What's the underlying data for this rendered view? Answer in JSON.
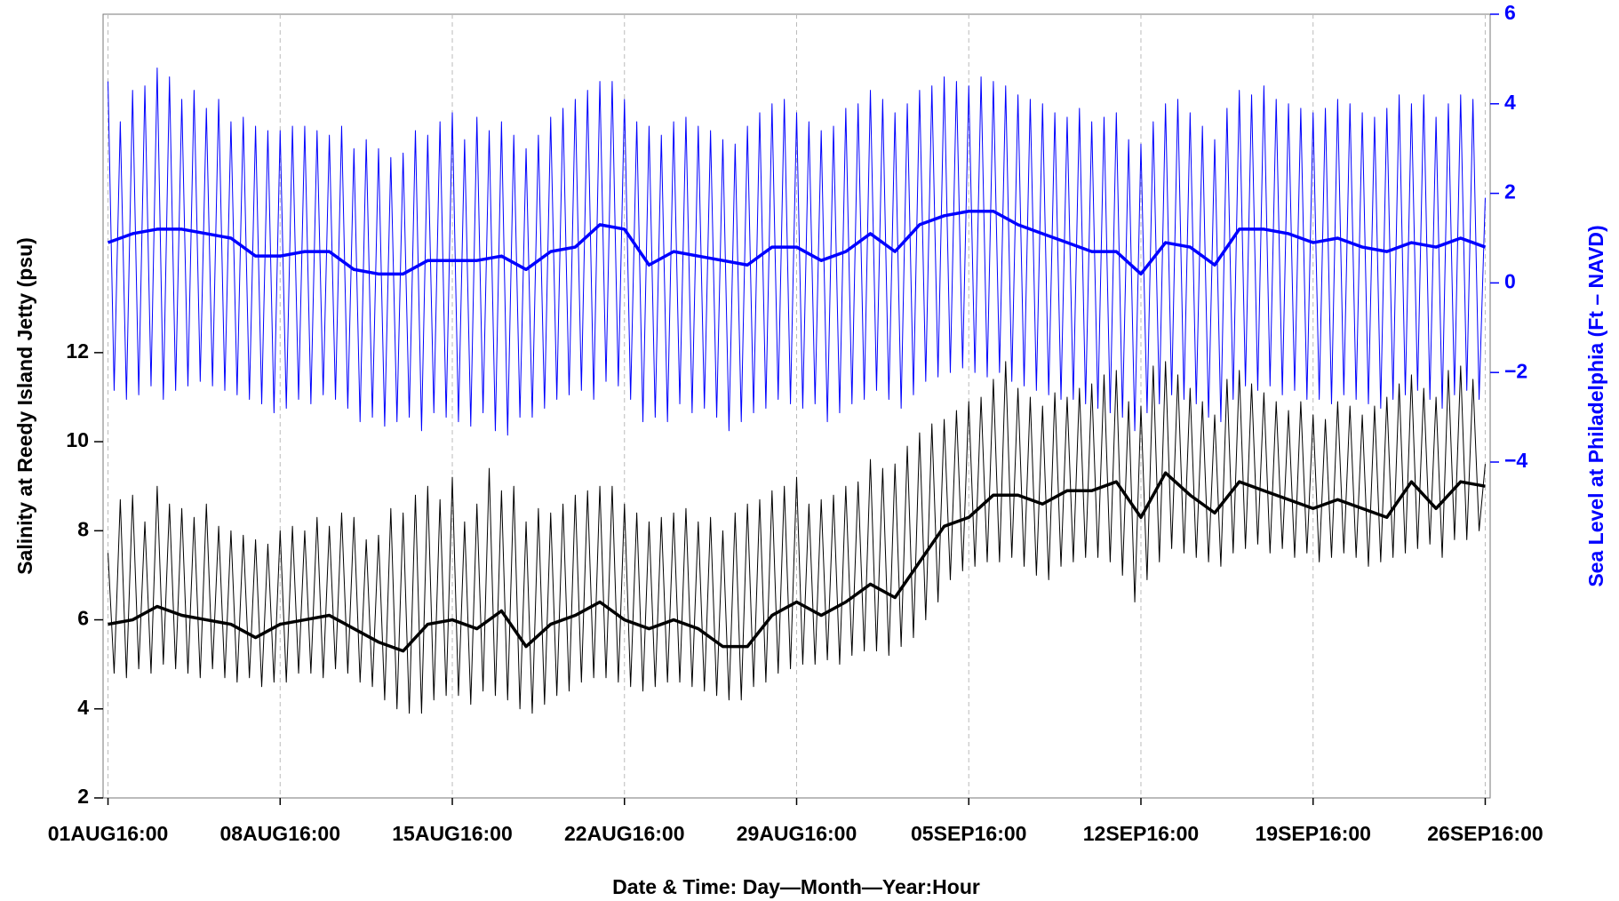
{
  "chart_data": {
    "type": "line",
    "xlabel": "Date & Time: Day—Month—Year:Hour",
    "ylabel": "Salinity at Reedy Island Jetty (psu)",
    "y2label": "Sea Level at Philadelphia (Ft  –  NAVD)",
    "xlim": [
      -0.2,
      56.2
    ],
    "xticks": [
      {
        "value": 0,
        "label": "01AUG16:00"
      },
      {
        "value": 7,
        "label": "08AUG16:00"
      },
      {
        "value": 14,
        "label": "15AUG16:00"
      },
      {
        "value": 21,
        "label": "22AUG16:00"
      },
      {
        "value": 28,
        "label": "29AUG16:00"
      },
      {
        "value": 35,
        "label": "05SEP16:00"
      },
      {
        "value": 42,
        "label": "12SEP16:00"
      },
      {
        "value": 49,
        "label": "19SEP16:00"
      },
      {
        "value": 56,
        "label": "26SEP16:00"
      }
    ],
    "ylim": [
      2,
      19.6
    ],
    "yticks": [
      2,
      4,
      6,
      8,
      10,
      12
    ],
    "y2lim": [
      -11.5,
      6
    ],
    "y2ticks": [
      {
        "value": -4,
        "label": "−4"
      },
      {
        "value": -2,
        "label": "−2"
      },
      0,
      2,
      4,
      6
    ],
    "xgrid": true,
    "x": [
      0,
      0.25,
      0.5,
      0.75,
      1,
      1.25,
      1.5,
      1.75,
      2,
      2.25,
      2.5,
      2.75,
      3,
      3.25,
      3.5,
      3.75,
      4,
      4.25,
      4.5,
      4.75,
      5,
      5.25,
      5.5,
      5.75,
      6,
      6.25,
      6.5,
      6.75,
      7,
      7.25,
      7.5,
      7.75,
      8,
      8.25,
      8.5,
      8.75,
      9,
      9.25,
      9.5,
      9.75,
      10,
      10.25,
      10.5,
      10.75,
      11,
      11.25,
      11.5,
      11.75,
      12,
      12.25,
      12.5,
      12.75,
      13,
      13.25,
      13.5,
      13.75,
      14,
      14.25,
      14.5,
      14.75,
      15,
      15.25,
      15.5,
      15.75,
      16,
      16.25,
      16.5,
      16.75,
      17,
      17.25,
      17.5,
      17.75,
      18,
      18.25,
      18.5,
      18.75,
      19,
      19.25,
      19.5,
      19.75,
      20,
      20.25,
      20.5,
      20.75,
      21,
      21.25,
      21.5,
      21.75,
      22,
      22.25,
      22.5,
      22.75,
      23,
      23.25,
      23.5,
      23.75,
      24,
      24.25,
      24.5,
      24.75,
      25,
      25.25,
      25.5,
      25.75,
      26,
      26.25,
      26.5,
      26.75,
      27,
      27.25,
      27.5,
      27.75,
      28,
      28.25,
      28.5,
      28.75,
      29,
      29.25,
      29.5,
      29.75,
      30,
      30.25,
      30.5,
      30.75,
      31,
      31.25,
      31.5,
      31.75,
      32,
      32.25,
      32.5,
      32.75,
      33,
      33.25,
      33.5,
      33.75,
      34,
      34.25,
      34.5,
      34.75,
      35,
      35.25,
      35.5,
      35.75,
      36,
      36.25,
      36.5,
      36.75,
      37,
      37.25,
      37.5,
      37.75,
      38,
      38.25,
      38.5,
      38.75,
      39,
      39.25,
      39.5,
      39.75,
      40,
      40.25,
      40.5,
      40.75,
      41,
      41.25,
      41.5,
      41.75,
      42,
      42.25,
      42.5,
      42.75,
      43,
      43.25,
      43.5,
      43.75,
      44,
      44.25,
      44.5,
      44.75,
      45,
      45.25,
      45.5,
      45.75,
      46,
      46.25,
      46.5,
      46.75,
      47,
      47.25,
      47.5,
      47.75,
      48,
      48.25,
      48.5,
      48.75,
      49,
      49.25,
      49.5,
      49.75,
      50,
      50.25,
      50.5,
      50.75,
      51,
      51.25,
      51.5,
      51.75,
      52,
      52.25,
      52.5,
      52.75,
      53,
      53.25,
      53.5,
      53.75,
      54,
      54.25,
      54.5,
      54.75,
      55,
      55.25,
      55.5,
      55.75,
      56
    ],
    "series": [
      {
        "axis": "y2",
        "color": "#0000ff",
        "width": 1,
        "values": [
          4.5,
          -2.4,
          3.6,
          -2.6,
          4.3,
          -2.5,
          4.4,
          -2.3,
          4.8,
          -2.6,
          4.6,
          -2.4,
          4.1,
          -2.3,
          4.3,
          -2.2,
          3.9,
          -2.3,
          4.1,
          -2.4,
          3.6,
          -2.5,
          3.7,
          -2.6,
          3.5,
          -2.7,
          3.4,
          -2.9,
          3.4,
          -2.8,
          3.5,
          -2.6,
          3.5,
          -2.7,
          3.4,
          -2.5,
          3.3,
          -2.6,
          3.5,
          -2.8,
          3.0,
          -3.1,
          3.2,
          -3.0,
          3.0,
          -3.2,
          2.8,
          -3.1,
          2.9,
          -3.0,
          3.4,
          -3.3,
          3.3,
          -2.9,
          3.6,
          -3.0,
          3.8,
          -3.1,
          3.2,
          -3.2,
          3.7,
          -2.9,
          3.4,
          -3.3,
          3.6,
          -3.4,
          3.3,
          -3.0,
          3.0,
          -3.0,
          3.3,
          -2.8,
          3.7,
          -2.6,
          3.9,
          -2.5,
          4.1,
          -2.4,
          4.3,
          -2.6,
          4.5,
          -2.2,
          4.5,
          -2.3,
          4.1,
          -2.6,
          3.6,
          -3.1,
          3.5,
          -3.0,
          3.3,
          -3.1,
          3.6,
          -2.7,
          3.7,
          -2.9,
          3.5,
          -2.8,
          3.4,
          -3.0,
          3.2,
          -3.3,
          3.1,
          -3.1,
          3.5,
          -2.9,
          3.8,
          -2.8,
          4.0,
          -2.6,
          4.1,
          -2.7,
          3.8,
          -2.8,
          3.6,
          -2.7,
          3.4,
          -3.1,
          3.5,
          -2.9,
          3.9,
          -2.7,
          4.0,
          -2.6,
          4.3,
          -2.4,
          4.1,
          -2.6,
          3.8,
          -2.8,
          4.0,
          -2.5,
          4.3,
          -2.2,
          4.4,
          -2.1,
          4.6,
          -2.0,
          4.5,
          -1.9,
          4.4,
          -2.0,
          4.6,
          -2.1,
          4.5,
          -2.0,
          4.4,
          -2.2,
          4.2,
          -2.3,
          4.1,
          -2.4,
          4.0,
          -2.5,
          3.8,
          -2.6,
          3.7,
          -2.6,
          3.9,
          -2.7,
          3.6,
          -2.8,
          3.7,
          -2.9,
          3.8,
          -3.0,
          3.2,
          -3.3,
          3.1,
          -2.9,
          3.6,
          -2.7,
          4.0,
          -2.5,
          4.1,
          -2.6,
          3.8,
          -2.7,
          3.5,
          -3.0,
          3.2,
          -3.1,
          3.9,
          -2.6,
          4.3,
          -2.3,
          4.2,
          -2.4,
          4.4,
          -2.3,
          4.1,
          -2.5,
          4.0,
          -2.4,
          3.9,
          -2.6,
          3.8,
          -2.6,
          3.9,
          -2.7,
          4.1,
          -2.5,
          4.0,
          -2.6,
          3.8,
          -2.7,
          3.7,
          -2.8,
          3.9,
          -2.6,
          4.2,
          -2.5,
          4.0,
          -2.4,
          4.2,
          -2.6,
          3.7,
          -2.8,
          4.0,
          -2.5,
          4.2,
          -2.4,
          4.1,
          -2.6,
          1.9
        ]
      },
      {
        "axis": "y2",
        "color": "#0000ff",
        "width": 3.5,
        "x": [
          0,
          1,
          2,
          3,
          4,
          5,
          6,
          7,
          8,
          9,
          10,
          11,
          12,
          13,
          14,
          15,
          16,
          17,
          18,
          19,
          20,
          21,
          22,
          23,
          24,
          25,
          26,
          27,
          28,
          29,
          30,
          31,
          32,
          33,
          34,
          35,
          36,
          37,
          38,
          39,
          40,
          41,
          42,
          43,
          44,
          45,
          46,
          47,
          48,
          49,
          50,
          51,
          52,
          53,
          54,
          55,
          56
        ],
        "values": [
          0.9,
          1.1,
          1.2,
          1.2,
          1.1,
          1.0,
          0.6,
          0.6,
          0.7,
          0.7,
          0.3,
          0.2,
          0.2,
          0.5,
          0.5,
          0.5,
          0.6,
          0.3,
          0.7,
          0.8,
          1.3,
          1.2,
          0.4,
          0.7,
          0.6,
          0.5,
          0.4,
          0.8,
          0.8,
          0.5,
          0.7,
          1.1,
          0.7,
          1.3,
          1.5,
          1.6,
          1.6,
          1.3,
          1.1,
          0.9,
          0.7,
          0.7,
          0.2,
          0.9,
          0.8,
          0.4,
          1.2,
          1.2,
          1.1,
          0.9,
          1.0,
          0.8,
          0.7,
          0.9,
          0.8,
          1.0,
          0.8
        ]
      },
      {
        "color": "#000000",
        "width": 1,
        "values": [
          7.5,
          4.8,
          8.7,
          4.7,
          8.8,
          4.9,
          8.2,
          4.8,
          9.0,
          5.0,
          8.6,
          4.9,
          8.5,
          4.8,
          8.3,
          4.7,
          8.6,
          4.9,
          8.1,
          4.7,
          8.0,
          4.6,
          7.9,
          4.7,
          7.8,
          4.5,
          7.7,
          4.6,
          8.0,
          4.6,
          8.1,
          4.8,
          8.0,
          4.8,
          8.3,
          4.7,
          8.1,
          4.9,
          8.4,
          4.8,
          8.3,
          4.6,
          7.8,
          4.5,
          7.9,
          4.2,
          8.5,
          4.0,
          8.4,
          3.9,
          8.8,
          3.9,
          9.0,
          4.2,
          8.7,
          4.3,
          9.2,
          4.3,
          8.2,
          4.1,
          8.6,
          4.4,
          9.4,
          4.3,
          8.9,
          4.2,
          9.0,
          4.0,
          8.2,
          3.9,
          8.5,
          4.1,
          8.4,
          4.3,
          8.6,
          4.4,
          8.8,
          4.6,
          8.9,
          4.7,
          9.0,
          4.7,
          9.0,
          4.6,
          8.6,
          4.5,
          8.4,
          4.4,
          8.2,
          4.5,
          8.3,
          4.6,
          8.4,
          4.6,
          8.5,
          4.5,
          8.2,
          4.4,
          8.3,
          4.3,
          8.0,
          4.2,
          8.4,
          4.2,
          8.6,
          4.5,
          8.7,
          4.6,
          8.9,
          4.8,
          9.0,
          4.9,
          9.2,
          5.0,
          8.6,
          5.0,
          8.7,
          5.1,
          8.8,
          5.0,
          9.0,
          5.2,
          9.1,
          5.3,
          9.6,
          5.3,
          9.4,
          5.2,
          9.5,
          5.4,
          9.9,
          5.6,
          10.2,
          6.0,
          10.4,
          6.4,
          10.5,
          6.9,
          10.7,
          7.1,
          10.9,
          7.2,
          11.0,
          7.3,
          11.4,
          7.3,
          11.8,
          7.4,
          11.2,
          7.2,
          11.0,
          7.0,
          10.8,
          6.9,
          11.1,
          7.2,
          11.0,
          7.3,
          11.2,
          7.4,
          11.3,
          7.4,
          11.5,
          7.3,
          11.6,
          7.0,
          10.9,
          6.4,
          10.8,
          6.9,
          11.7,
          7.3,
          11.8,
          7.6,
          11.5,
          7.5,
          11.2,
          7.4,
          10.9,
          7.3,
          10.6,
          7.2,
          11.4,
          7.5,
          11.6,
          7.6,
          11.3,
          7.7,
          11.1,
          7.5,
          10.9,
          7.6,
          10.7,
          7.4,
          10.9,
          7.5,
          10.6,
          7.3,
          10.5,
          7.4,
          10.9,
          7.5,
          10.8,
          7.4,
          10.6,
          7.2,
          10.8,
          7.3,
          11.0,
          7.4,
          11.3,
          7.5,
          11.5,
          7.6,
          11.2,
          7.7,
          11.0,
          7.4,
          11.6,
          7.8,
          11.7,
          7.8,
          11.4,
          8.0,
          9.5
        ]
      },
      {
        "color": "#000000",
        "width": 3.5,
        "x": [
          0,
          1,
          2,
          3,
          4,
          5,
          6,
          7,
          8,
          9,
          10,
          11,
          12,
          13,
          14,
          15,
          16,
          17,
          18,
          19,
          20,
          21,
          22,
          23,
          24,
          25,
          26,
          27,
          28,
          29,
          30,
          31,
          32,
          33,
          34,
          35,
          36,
          37,
          38,
          39,
          40,
          41,
          42,
          43,
          44,
          45,
          46,
          47,
          48,
          49,
          50,
          51,
          52,
          53,
          54,
          55,
          56
        ],
        "values": [
          5.9,
          6.0,
          6.3,
          6.1,
          6.0,
          5.9,
          5.6,
          5.9,
          6.0,
          6.1,
          5.8,
          5.5,
          5.3,
          5.9,
          6.0,
          5.8,
          6.2,
          5.4,
          5.9,
          6.1,
          6.4,
          6.0,
          5.8,
          6.0,
          5.8,
          5.4,
          5.4,
          6.1,
          6.4,
          6.1,
          6.4,
          6.8,
          6.5,
          7.3,
          8.1,
          8.3,
          8.8,
          8.8,
          8.6,
          8.9,
          8.9,
          9.1,
          8.3,
          9.3,
          8.8,
          8.4,
          9.1,
          8.9,
          8.7,
          8.5,
          8.7,
          8.5,
          8.3,
          9.1,
          8.5,
          9.1,
          9.0
        ]
      }
    ]
  }
}
